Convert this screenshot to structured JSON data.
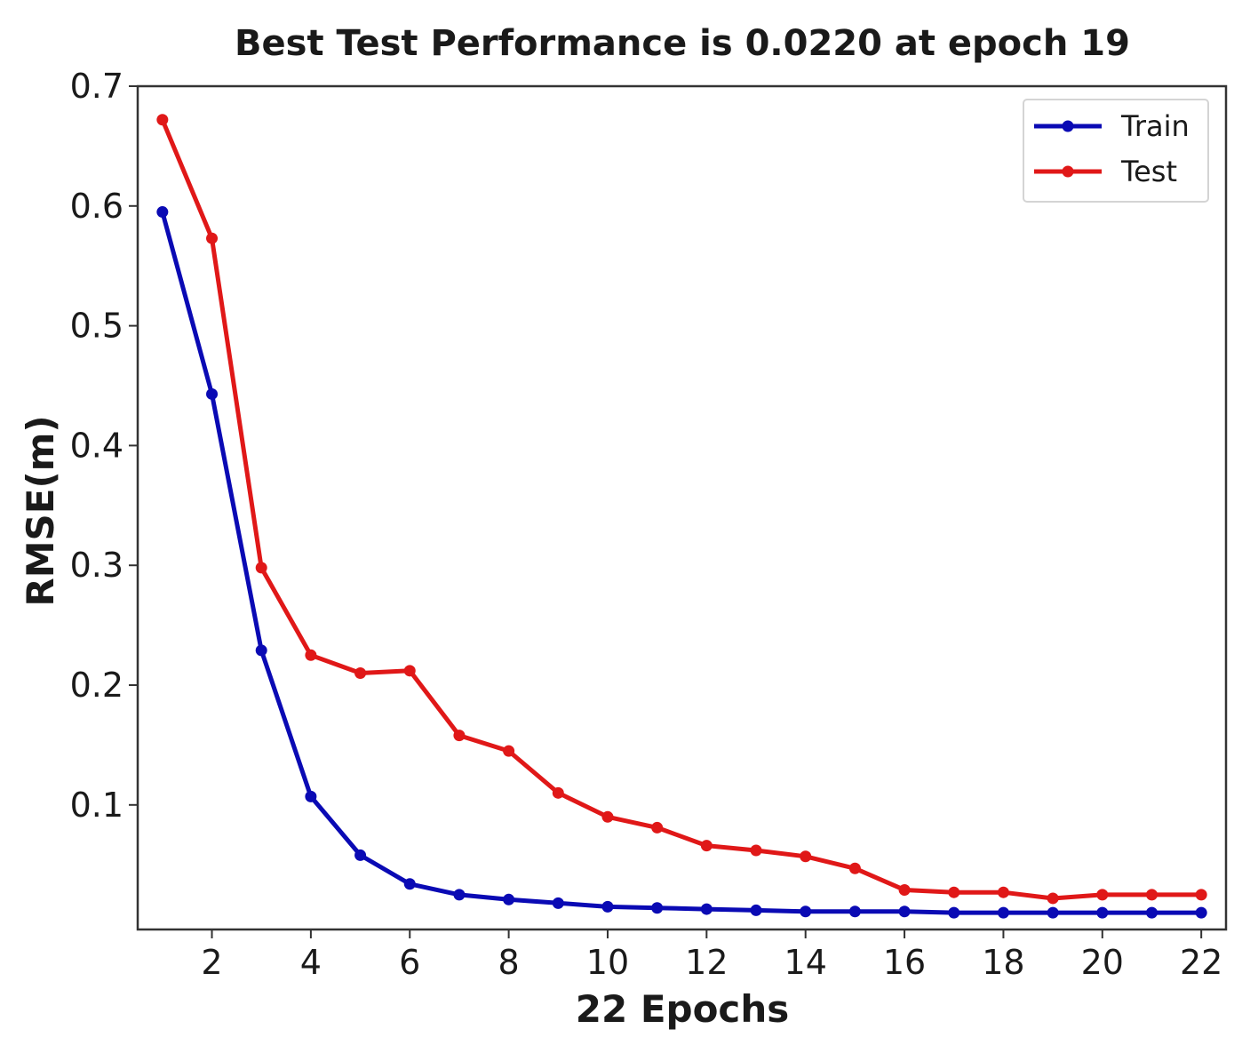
{
  "chart_data": {
    "type": "line",
    "title": "Best Test Performance is 0.0220 at epoch 19",
    "xlabel": "22 Epochs",
    "ylabel": "RMSE(m)",
    "xlim": [
      0.5,
      22.5
    ],
    "ylim": [
      -0.004,
      0.7
    ],
    "x_ticks": [
      2,
      4,
      6,
      8,
      10,
      12,
      14,
      16,
      18,
      20,
      22
    ],
    "y_ticks": [
      0.1,
      0.2,
      0.3,
      0.4,
      0.5,
      0.6,
      0.7
    ],
    "grid": false,
    "legend_position": "top-right",
    "x": [
      1,
      2,
      3,
      4,
      5,
      6,
      7,
      8,
      9,
      10,
      11,
      12,
      13,
      14,
      15,
      16,
      17,
      18,
      19,
      20,
      21,
      22
    ],
    "series": [
      {
        "name": "Train",
        "color": "#0a0ab4",
        "marker": "circle",
        "values": [
          0.595,
          0.443,
          0.229,
          0.107,
          0.058,
          0.034,
          0.025,
          0.021,
          0.018,
          0.015,
          0.014,
          0.013,
          0.012,
          0.011,
          0.011,
          0.011,
          0.01,
          0.01,
          0.01,
          0.01,
          0.01,
          0.01
        ]
      },
      {
        "name": "Test",
        "color": "#e01818",
        "marker": "circle",
        "values": [
          0.672,
          0.573,
          0.298,
          0.225,
          0.21,
          0.212,
          0.158,
          0.145,
          0.11,
          0.09,
          0.081,
          0.066,
          0.062,
          0.057,
          0.047,
          0.029,
          0.027,
          0.027,
          0.022,
          0.025,
          0.025,
          0.025
        ]
      }
    ]
  }
}
